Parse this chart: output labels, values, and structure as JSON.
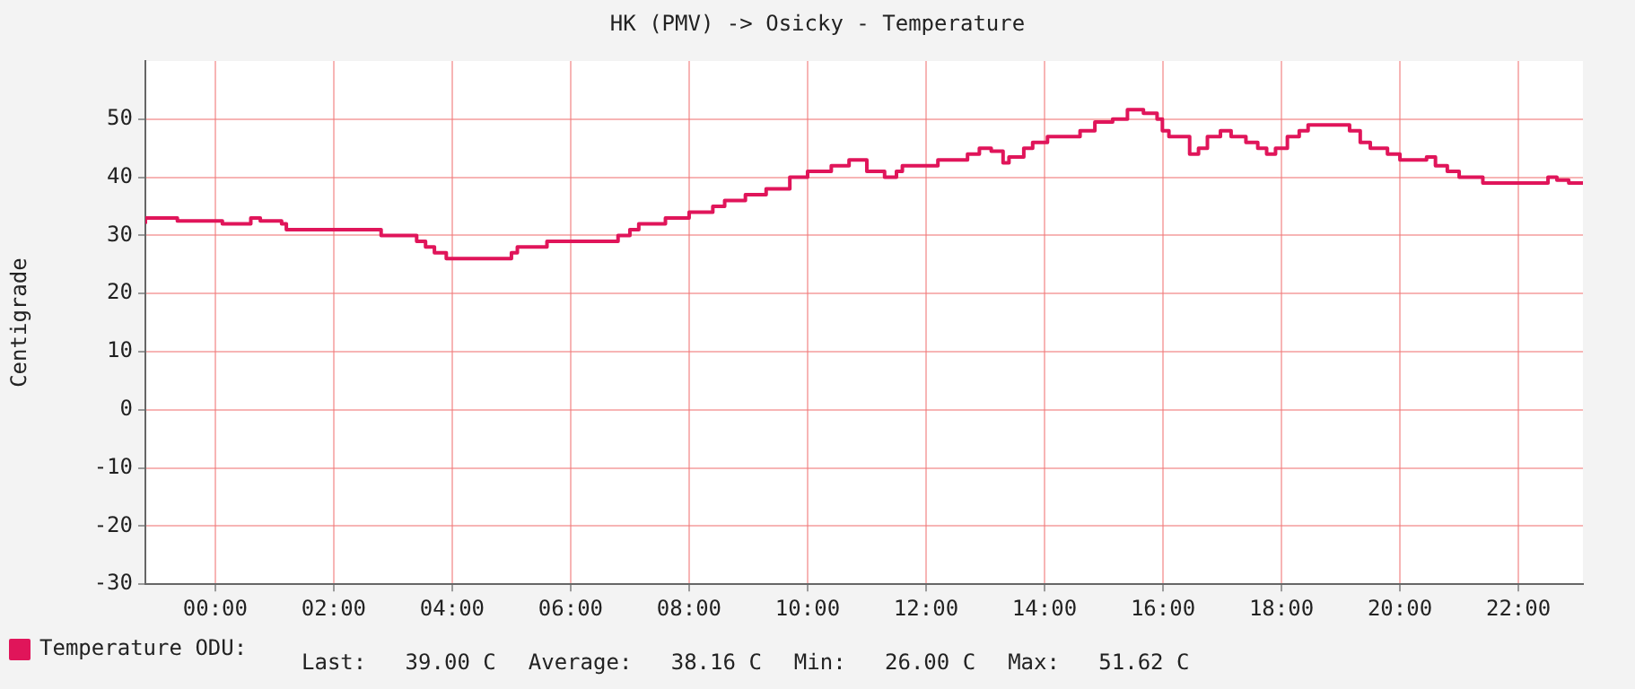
{
  "chart_data": {
    "type": "step",
    "title": "HK (PMV) -> Osicky - Temperature",
    "ylabel": "Centigrade",
    "x": [
      -1.18,
      -0.64,
      0.12,
      0.6,
      0.76,
      1.12,
      1.2,
      1.45,
      2.8,
      2.9,
      3.4,
      3.55,
      3.7,
      3.9,
      4.2,
      5.0,
      5.1,
      5.6,
      6.0,
      6.8,
      7.0,
      7.15,
      7.6,
      8.0,
      8.4,
      8.6,
      8.95,
      9.3,
      9.7,
      10.0,
      10.4,
      10.7,
      11.0,
      11.3,
      11.5,
      11.6,
      12.2,
      12.7,
      12.9,
      13.1,
      13.3,
      13.4,
      13.65,
      13.8,
      14.05,
      14.2,
      14.6,
      14.85,
      15.15,
      15.4,
      15.67,
      15.9,
      15.99,
      16.1,
      16.45,
      16.6,
      16.75,
      16.97,
      17.15,
      17.4,
      17.6,
      17.75,
      17.9,
      18.1,
      18.3,
      18.45,
      18.67,
      19.15,
      19.33,
      19.5,
      19.79,
      20.0,
      20.1,
      20.45,
      20.6,
      20.8,
      21.0,
      21.4,
      21.6,
      22.5,
      22.65,
      22.85,
      22.95,
      23.09
    ],
    "series": [
      {
        "name": "Temperature ODU:",
        "color": "#e0155a",
        "values": [
          32,
          33,
          32.5,
          32,
          33,
          32.5,
          32,
          31,
          31,
          30,
          30,
          29,
          28,
          27,
          26,
          26,
          27,
          28,
          29,
          29,
          30,
          31,
          32,
          33,
          34,
          35,
          36,
          37,
          38,
          40,
          41,
          42,
          43,
          41,
          40,
          41,
          42,
          43,
          44,
          45,
          44.5,
          42.5,
          43.5,
          45,
          46,
          47,
          47,
          48,
          49.5,
          50,
          51.62,
          51,
          50,
          48,
          47,
          44,
          45,
          47,
          48,
          47,
          46,
          45,
          44,
          45,
          47,
          48,
          49,
          49,
          48,
          46,
          45,
          44,
          43,
          43,
          43.5,
          42,
          41,
          40,
          39,
          39,
          40,
          39.5,
          39,
          39
        ]
      }
    ],
    "xlim": [
      -1.18,
      23.09
    ],
    "xticks": [
      {
        "value": 0,
        "label": "00:00"
      },
      {
        "value": 2,
        "label": "02:00"
      },
      {
        "value": 4,
        "label": "04:00"
      },
      {
        "value": 6,
        "label": "06:00"
      },
      {
        "value": 8,
        "label": "08:00"
      },
      {
        "value": 10,
        "label": "10:00"
      },
      {
        "value": 12,
        "label": "12:00"
      },
      {
        "value": 14,
        "label": "14:00"
      },
      {
        "value": 16,
        "label": "16:00"
      },
      {
        "value": 18,
        "label": "18:00"
      },
      {
        "value": 20,
        "label": "20:00"
      },
      {
        "value": 22,
        "label": "22:00"
      }
    ],
    "ylim": [
      -30,
      60
    ],
    "yticks": [
      -30,
      -20,
      -10,
      0,
      10,
      20,
      30,
      40,
      50
    ],
    "grid": true,
    "legend": "bottom",
    "annotations": [
      "Last:   39.00 C",
      "Average:   38.16 C",
      "Min:   26.00 C",
      "Max:   51.62 C"
    ]
  }
}
